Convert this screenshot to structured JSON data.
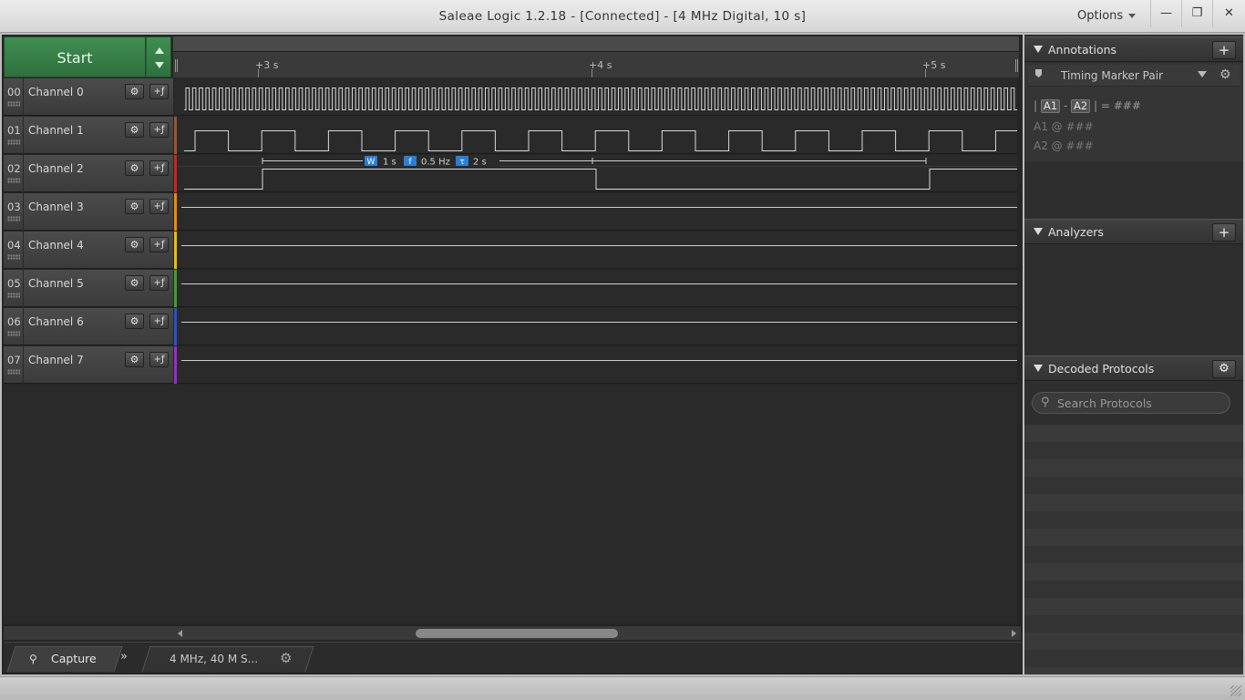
{
  "window": {
    "title": "Saleae Logic 1.2.18 - [Connected] - [4 MHz Digital, 10 s]",
    "options_label": "Options",
    "minimize_icon": "—",
    "restore_icon": "❐",
    "close_icon": "✕"
  },
  "controls": {
    "start_label": "Start"
  },
  "timeline": {
    "ticks": [
      "+3 s",
      "+4 s",
      "+5 s"
    ]
  },
  "channels": [
    {
      "num": "00",
      "name": "Channel 0",
      "color": "#2a2a2a"
    },
    {
      "num": "01",
      "name": "Channel 1",
      "color": "#a0522d"
    },
    {
      "num": "02",
      "name": "Channel 2",
      "color": "#d22020"
    },
    {
      "num": "03",
      "name": "Channel 3",
      "color": "#f08a00"
    },
    {
      "num": "04",
      "name": "Channel 4",
      "color": "#e8c000"
    },
    {
      "num": "05",
      "name": "Channel 5",
      "color": "#3aa22a"
    },
    {
      "num": "06",
      "name": "Channel 6",
      "color": "#2a4fd8"
    },
    {
      "num": "07",
      "name": "Channel 7",
      "color": "#9a2ad2"
    }
  ],
  "measurement": {
    "width_badge": "W",
    "width": "1 s",
    "freq_badge": "f",
    "frequency": "0.5 Hz",
    "period_badge": "τ",
    "period": "2 s"
  },
  "bottom_bar": {
    "capture_tab": "Capture",
    "capture_info": "4 MHz, 40 M S...",
    "more_tabs_icon": "»"
  },
  "annotations": {
    "title": "Annotations",
    "marker_pair": "Timing Marker Pair",
    "formula_a1": "A1",
    "formula_a2": "A2",
    "formula_value": "= ###",
    "a1_line_label": "A1",
    "a1_line_value": "@  ###",
    "a2_line_label": "A2",
    "a2_line_value": "@  ###"
  },
  "analyzers": {
    "title": "Analyzers"
  },
  "decoded_protocols": {
    "title": "Decoded Protocols",
    "search_placeholder": "Search Protocols"
  }
}
